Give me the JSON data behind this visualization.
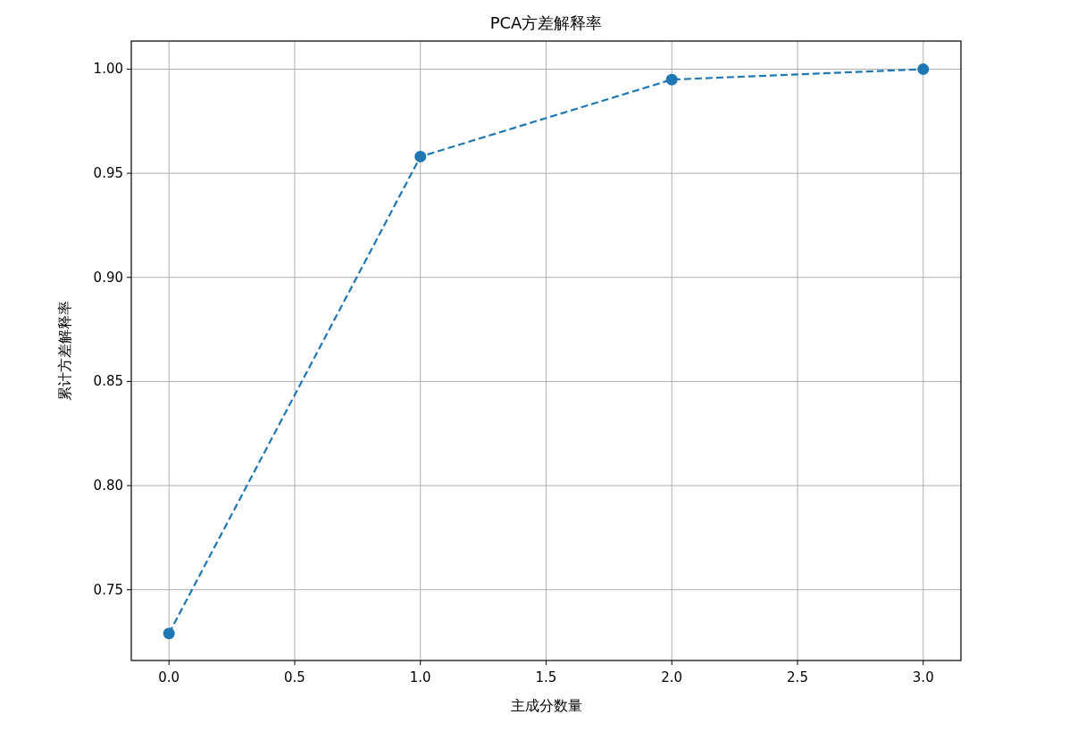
{
  "chart_data": {
    "type": "line",
    "title": "PCA方差解释率",
    "xlabel": "主成分数量",
    "ylabel": "累计方差解释率",
    "x": [
      0,
      1,
      2,
      3
    ],
    "series": [
      {
        "color": "#1f77b4",
        "values": [
          0.729,
          0.958,
          0.995,
          1.0
        ]
      }
    ],
    "xlim": [
      -0.15,
      3.15
    ],
    "ylim": [
      0.716,
      1.0135
    ],
    "xticks": [
      {
        "value": 0,
        "label": "0.0"
      },
      {
        "value": 0.5,
        "label": "0.5"
      },
      {
        "value": 1,
        "label": "1.0"
      },
      {
        "value": 1.5,
        "label": "1.5"
      },
      {
        "value": 2,
        "label": "2.0"
      },
      {
        "value": 2.5,
        "label": "2.5"
      },
      {
        "value": 3,
        "label": "3.0"
      }
    ],
    "yticks": [
      {
        "value": 0.75,
        "label": "0.75"
      },
      {
        "value": 0.8,
        "label": "0.80"
      },
      {
        "value": 0.85,
        "label": "0.85"
      },
      {
        "value": 0.9,
        "label": "0.90"
      },
      {
        "value": 0.95,
        "label": "0.95"
      },
      {
        "value": 1.0,
        "label": "1.00"
      }
    ],
    "grid": true,
    "marker": "circle",
    "line_style": "dashed"
  }
}
